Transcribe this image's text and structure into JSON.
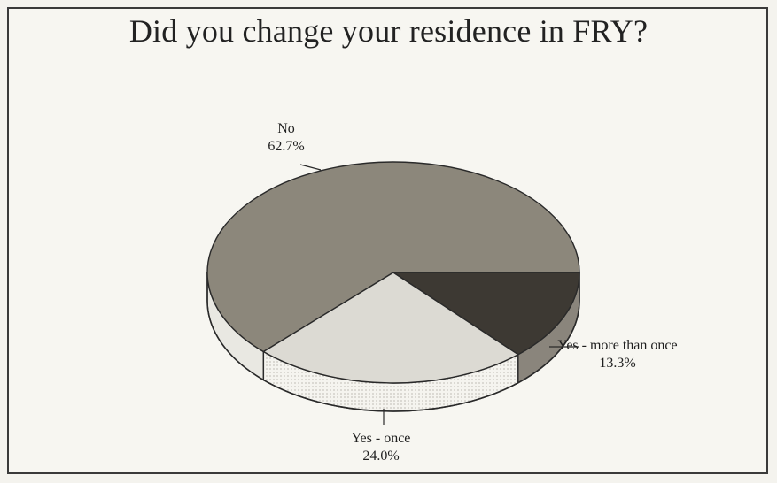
{
  "chart_data": {
    "type": "pie",
    "title": "Did you change your residence in FRY?",
    "slices": [
      {
        "label": "No",
        "value": 62.7,
        "value_text": "62.7%",
        "color": "#8c877b",
        "side_color": "#e9e8e2"
      },
      {
        "label": "Yes - once",
        "value": 24.0,
        "value_text": "24.0%",
        "color": "#dcdad3",
        "side_color": "#f3f2ec"
      },
      {
        "label": "Yes - more than once",
        "value": 13.3,
        "value_text": "13.3%",
        "color": "#3d3933",
        "side_color": "#8a857c"
      }
    ]
  }
}
